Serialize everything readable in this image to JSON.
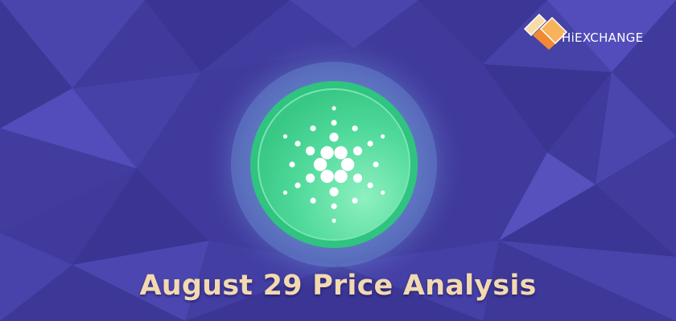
{
  "brand": {
    "name": "HiEXCHANGE",
    "logo_icon": "hiexchange-diamond-logo-icon",
    "logo_colors": [
      "#f6b35a",
      "#f08a36",
      "#f7dca8",
      "#ffffff"
    ]
  },
  "coin": {
    "icon": "cardano-logo-icon",
    "colors": {
      "outer_glow": "#7fb2e8",
      "ring": "#2fc47f",
      "face": "#46d693",
      "face_light": "#8ef0c0",
      "dots": "#ffffff"
    }
  },
  "headline": "August 29 Price Analysis",
  "colors": {
    "background": "#3f3a9c",
    "background_dark": "#332f8a",
    "background_light": "#5a55b8",
    "headline": "#f2d9b0"
  }
}
